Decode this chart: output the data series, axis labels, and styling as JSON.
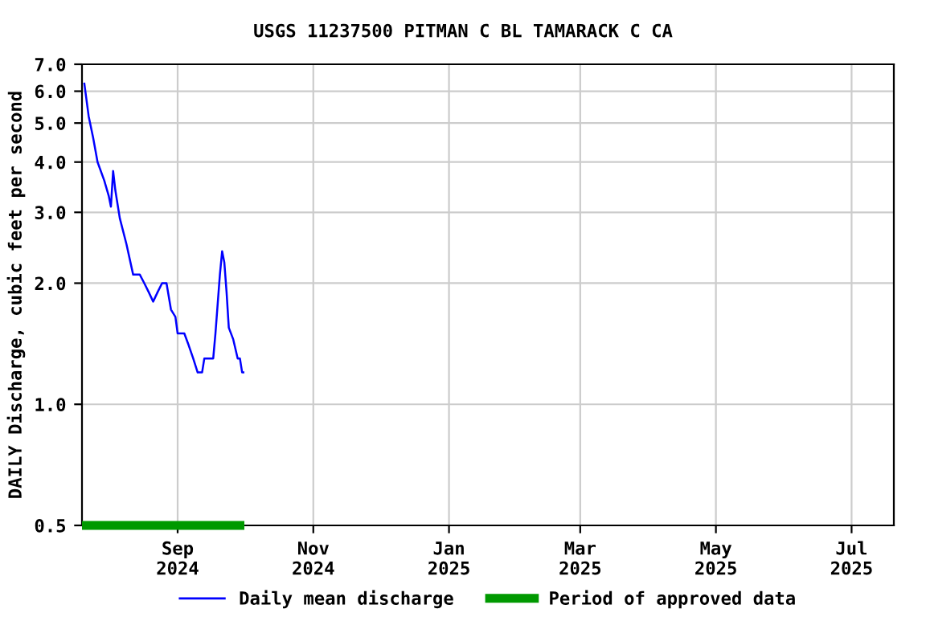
{
  "chart_data": {
    "type": "line",
    "title": "USGS 11237500 PITMAN C BL TAMARACK C CA",
    "ylabel": "DAILY Discharge, cubic feet per second",
    "log": "y",
    "grid": true,
    "legend": "bottom",
    "marker": "none",
    "line_style": "solid",
    "xlim": [
      "2024-07-20",
      "2025-07-20"
    ],
    "xticks": [
      {
        "value": "2024-09-01",
        "label": "Sep\n2024"
      },
      {
        "value": "2024-11-01",
        "label": "Nov\n2024"
      },
      {
        "value": "2025-01-01",
        "label": "Jan\n2025"
      },
      {
        "value": "2025-03-01",
        "label": "Mar\n2025"
      },
      {
        "value": "2025-05-01",
        "label": "May\n2025"
      },
      {
        "value": "2025-07-01",
        "label": "Jul\n2025"
      }
    ],
    "ylim": [
      0.5,
      7.0
    ],
    "yticks": [
      {
        "value": 0.5,
        "label": "0.5"
      },
      {
        "value": 1.0,
        "label": "1.0"
      },
      {
        "value": 2.0,
        "label": "2.0"
      },
      {
        "value": 3.0,
        "label": "3.0"
      },
      {
        "value": 4.0,
        "label": "4.0"
      },
      {
        "value": 5.0,
        "label": "5.0"
      },
      {
        "value": 6.0,
        "label": "6.0"
      },
      {
        "value": 7.0,
        "label": "7.0"
      }
    ],
    "series": [
      {
        "name": "Daily mean discharge",
        "color": "#0000ff",
        "x": [
          "2024-07-21",
          "2024-07-23",
          "2024-07-25",
          "2024-07-27",
          "2024-07-30",
          "2024-08-01",
          "2024-08-02",
          "2024-08-03",
          "2024-08-04",
          "2024-08-06",
          "2024-08-09",
          "2024-08-12",
          "2024-08-15",
          "2024-08-17",
          "2024-08-19",
          "2024-08-21",
          "2024-08-23",
          "2024-08-25",
          "2024-08-27",
          "2024-08-29",
          "2024-08-31",
          "2024-09-01",
          "2024-09-04",
          "2024-09-06",
          "2024-09-08",
          "2024-09-10",
          "2024-09-12",
          "2024-09-13",
          "2024-09-17",
          "2024-09-18",
          "2024-09-20",
          "2024-09-21",
          "2024-09-22",
          "2024-09-23",
          "2024-09-24",
          "2024-09-26",
          "2024-09-28",
          "2024-09-29",
          "2024-09-30",
          "2024-10-01"
        ],
        "values": [
          6.3,
          5.2,
          4.6,
          4.0,
          3.6,
          3.3,
          3.1,
          3.8,
          3.4,
          2.9,
          2.5,
          2.1,
          2.1,
          2.0,
          1.9,
          1.8,
          1.9,
          2.0,
          2.0,
          1.72,
          1.65,
          1.5,
          1.5,
          1.4,
          1.3,
          1.2,
          1.2,
          1.3,
          1.3,
          1.5,
          2.1,
          2.4,
          2.25,
          1.9,
          1.55,
          1.45,
          1.3,
          1.3,
          1.2,
          1.2
        ]
      },
      {
        "name": "Period of approved data",
        "color": "#009900",
        "x": [
          "2024-07-20",
          "2024-10-01"
        ],
        "values": [
          0.5,
          0.5
        ]
      }
    ]
  }
}
